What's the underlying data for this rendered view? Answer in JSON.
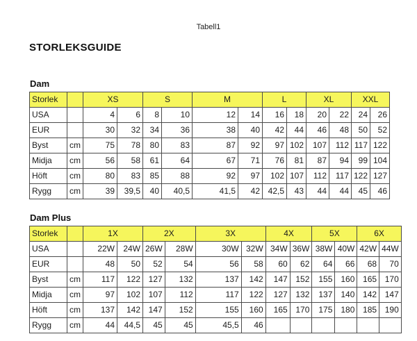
{
  "page": {
    "doc_title": "Tabell1",
    "heading": "STORLEKSGUIDE"
  },
  "colors": {
    "header_bg": "#f6f65c",
    "grid_border": "#4a4a4a",
    "text": "#1c1c1c"
  },
  "tables": [
    {
      "title": "Dam",
      "header_label": "Storlek",
      "sizes": [
        "XS",
        "S",
        "M",
        "L",
        "XL",
        "XXL"
      ],
      "rows": [
        {
          "label": "USA",
          "unit": "",
          "values": [
            "4",
            "6",
            "8",
            "10",
            "12",
            "14",
            "16",
            "18",
            "20",
            "22",
            "24",
            "26"
          ]
        },
        {
          "label": "EUR",
          "unit": "",
          "values": [
            "30",
            "32",
            "34",
            "36",
            "38",
            "40",
            "42",
            "44",
            "46",
            "48",
            "50",
            "52"
          ]
        },
        {
          "label": "Byst",
          "unit": "cm",
          "values": [
            "75",
            "78",
            "80",
            "83",
            "87",
            "92",
            "97",
            "102",
            "107",
            "112",
            "117",
            "122"
          ]
        },
        {
          "label": "Midja",
          "unit": "cm",
          "values": [
            "56",
            "58",
            "61",
            "64",
            "67",
            "71",
            "76",
            "81",
            "87",
            "94",
            "99",
            "104"
          ]
        },
        {
          "label": "Höft",
          "unit": "cm",
          "values": [
            "80",
            "83",
            "85",
            "88",
            "92",
            "97",
            "102",
            "107",
            "112",
            "117",
            "122",
            "127"
          ]
        },
        {
          "label": "Rygg",
          "unit": "cm",
          "values": [
            "39",
            "39,5",
            "40",
            "40,5",
            "41,5",
            "42",
            "42,5",
            "43",
            "44",
            "44",
            "45",
            "46"
          ]
        }
      ]
    },
    {
      "title": "Dam Plus",
      "header_label": "Storlek",
      "sizes": [
        "1X",
        "2X",
        "3X",
        "4X",
        "5X",
        "6X"
      ],
      "rows": [
        {
          "label": "USA",
          "unit": "",
          "values": [
            "22W",
            "24W",
            "26W",
            "28W",
            "30W",
            "32W",
            "34W",
            "36W",
            "38W",
            "40W",
            "42W",
            "44W"
          ]
        },
        {
          "label": "EUR",
          "unit": "",
          "values": [
            "48",
            "50",
            "52",
            "54",
            "56",
            "58",
            "60",
            "62",
            "64",
            "66",
            "68",
            "70"
          ]
        },
        {
          "label": "Byst",
          "unit": "cm",
          "values": [
            "117",
            "122",
            "127",
            "132",
            "137",
            "142",
            "147",
            "152",
            "155",
            "160",
            "165",
            "170"
          ]
        },
        {
          "label": "Midja",
          "unit": "cm",
          "values": [
            "97",
            "102",
            "107",
            "112",
            "117",
            "122",
            "127",
            "132",
            "137",
            "140",
            "142",
            "147"
          ]
        },
        {
          "label": "Höft",
          "unit": "cm",
          "values": [
            "137",
            "142",
            "147",
            "152",
            "155",
            "160",
            "165",
            "170",
            "175",
            "180",
            "185",
            "190"
          ]
        },
        {
          "label": "Rygg",
          "unit": "cm",
          "values": [
            "44",
            "44,5",
            "45",
            "45",
            "45,5",
            "46",
            "",
            "",
            "",
            "",
            "",
            ""
          ]
        }
      ]
    }
  ]
}
